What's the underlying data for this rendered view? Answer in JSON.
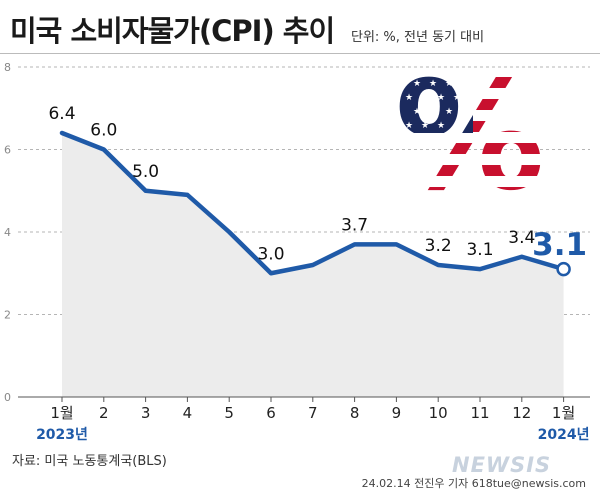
{
  "header": {
    "title": "미국 소비자물가(CPI) 추이",
    "unit": "단위: %, 전년 동기 대비"
  },
  "footer": {
    "source": "자료: 미국 노동통계국(BLS)",
    "credit": "24.02.14 전진우 기자 618tue@newsis.com",
    "watermark": "NEWSIS"
  },
  "colors": {
    "line": "#1f5aa8",
    "area": "#ececec",
    "latest_label": "#1f5aa8",
    "year_label": "#1f5aa8"
  },
  "chart_data": {
    "type": "line",
    "x": [
      "1월",
      "2",
      "3",
      "4",
      "5",
      "6",
      "7",
      "8",
      "9",
      "10",
      "11",
      "12",
      "1월"
    ],
    "y": [
      6.4,
      6.0,
      5.0,
      4.9,
      4.0,
      3.0,
      3.2,
      3.7,
      3.7,
      3.2,
      3.1,
      3.4,
      3.1
    ],
    "data_labels": [
      {
        "index": 0,
        "text": "6.4"
      },
      {
        "index": 1,
        "text": "6.0"
      },
      {
        "index": 2,
        "text": "5.0"
      },
      {
        "index": 5,
        "text": "3.0"
      },
      {
        "index": 7,
        "text": "3.7"
      },
      {
        "index": 9,
        "text": "3.2"
      },
      {
        "index": 10,
        "text": "3.1"
      },
      {
        "index": 11,
        "text": "3.4"
      },
      {
        "index": 12,
        "text": "3.1",
        "highlight": true
      }
    ],
    "yticks": [
      "0",
      "2",
      "4",
      "6",
      "8"
    ],
    "ylim": [
      0,
      8
    ],
    "grid": true,
    "year_labels": [
      {
        "index": 0,
        "text": "2023년"
      },
      {
        "index": 12,
        "text": "2024년"
      }
    ],
    "decoration": "percent-sign-us-flag"
  }
}
